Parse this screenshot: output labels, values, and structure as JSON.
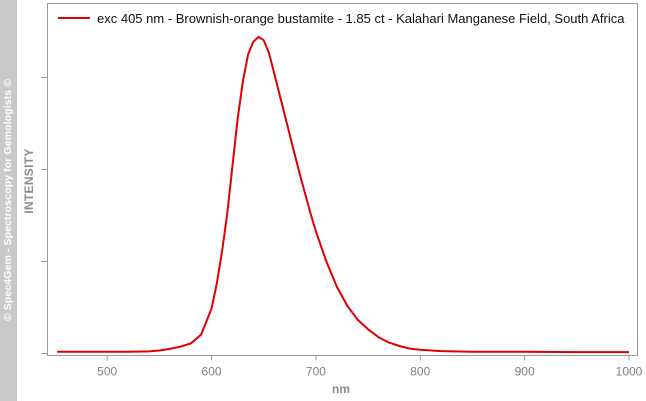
{
  "watermark": "© Spec4Gem - Spectroscopy for Gemologists ©",
  "colors": {
    "line": "#e00000",
    "axis": "#9a9a9a",
    "tick_text": "#7f7f7f",
    "sidebar": "#c9c9c9"
  },
  "chart_data": {
    "type": "line",
    "title": "",
    "xlabel": "nm",
    "ylabel": "INTENSITY",
    "xlim": [
      450,
      1000
    ],
    "ylim": [
      0,
      1
    ],
    "x_ticks": [
      500,
      600,
      700,
      800,
      900,
      1000
    ],
    "y_tick_count": 4,
    "y_tick_labels_shown": false,
    "grid": false,
    "legend_position": "top",
    "series": [
      {
        "name": "exc 405 nm - Brownish-orange bustamite - 1.85 ct - Kalahari Manganese Field, South Africa",
        "color": "#e00000",
        "x": [
          452,
          480,
          500,
          520,
          540,
          550,
          560,
          570,
          580,
          590,
          600,
          605,
          610,
          615,
          620,
          625,
          630,
          635,
          640,
          645,
          650,
          655,
          660,
          665,
          670,
          675,
          680,
          685,
          690,
          695,
          700,
          710,
          720,
          730,
          740,
          750,
          760,
          770,
          780,
          790,
          800,
          820,
          850,
          900,
          950,
          1000
        ],
        "y": [
          0.004,
          0.004,
          0.004,
          0.004,
          0.005,
          0.008,
          0.013,
          0.02,
          0.03,
          0.058,
          0.14,
          0.22,
          0.32,
          0.44,
          0.59,
          0.74,
          0.86,
          0.945,
          0.985,
          1.0,
          0.99,
          0.95,
          0.885,
          0.82,
          0.755,
          0.69,
          0.625,
          0.56,
          0.5,
          0.44,
          0.385,
          0.29,
          0.21,
          0.15,
          0.105,
          0.075,
          0.05,
          0.033,
          0.022,
          0.014,
          0.01,
          0.006,
          0.004,
          0.004,
          0.003,
          0.003
        ]
      }
    ]
  }
}
